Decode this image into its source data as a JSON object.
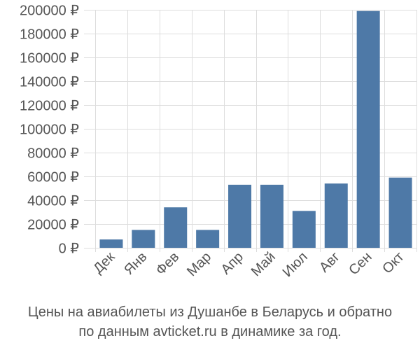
{
  "chart_data": {
    "type": "bar",
    "categories": [
      "Дек",
      "Янв",
      "Фев",
      "Мар",
      "Апр",
      "Май",
      "Июл",
      "Авг",
      "Сен",
      "Окт"
    ],
    "series": [
      {
        "values": [
          7000,
          15000,
          34000,
          15000,
          53000,
          53000,
          31000,
          54000,
          199000,
          59000
        ]
      }
    ],
    "ylim": [
      0,
      200000
    ],
    "yticks": [
      0,
      20000,
      40000,
      60000,
      80000,
      100000,
      120000,
      140000,
      160000,
      180000,
      200000
    ],
    "ytick_labels": [
      "0 ₽",
      "20000 ₽",
      "40000 ₽",
      "60000 ₽",
      "80000 ₽",
      "100000 ₽",
      "120000 ₽",
      "140000 ₽",
      "160000 ₽",
      "180000 ₽",
      "200000 ₽"
    ],
    "bar_color": "#4e79a7",
    "grid": true,
    "caption_lines": [
      "Цены на авиабилеты из Душанбе в Беларусь и обратно",
      "по данным avticket.ru в динамике за год."
    ]
  }
}
